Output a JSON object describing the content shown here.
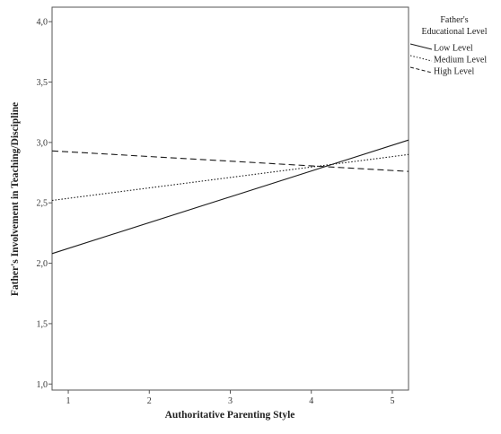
{
  "chart_data": {
    "type": "line",
    "xlabel": "Authoritative Parenting Style",
    "ylabel": "Father's Involvement in Teaching/Discipline",
    "xlim": [
      0.8,
      5.2
    ],
    "ylim": [
      0.95,
      4.12
    ],
    "x_ticks": [
      "1",
      "2",
      "3",
      "4",
      "5"
    ],
    "y_ticks": [
      "1,0",
      "1,5",
      "2,0",
      "2,5",
      "3,0",
      "3,5",
      "4,0"
    ],
    "grid": false,
    "legend": {
      "title": "Father's Educational Level",
      "title_lines": [
        "Father's",
        "Educational Level"
      ],
      "placement": "right"
    },
    "series": [
      {
        "name": "Low Level",
        "style": "solid",
        "x": [
          0.8,
          5.2
        ],
        "y": [
          2.08,
          3.02
        ]
      },
      {
        "name": "Medium Level",
        "style": "dotted",
        "x": [
          0.8,
          5.2
        ],
        "y": [
          2.52,
          2.9
        ]
      },
      {
        "name": "High Level",
        "style": "dashed",
        "x": [
          0.8,
          5.2
        ],
        "y": [
          2.93,
          2.76
        ]
      }
    ]
  }
}
